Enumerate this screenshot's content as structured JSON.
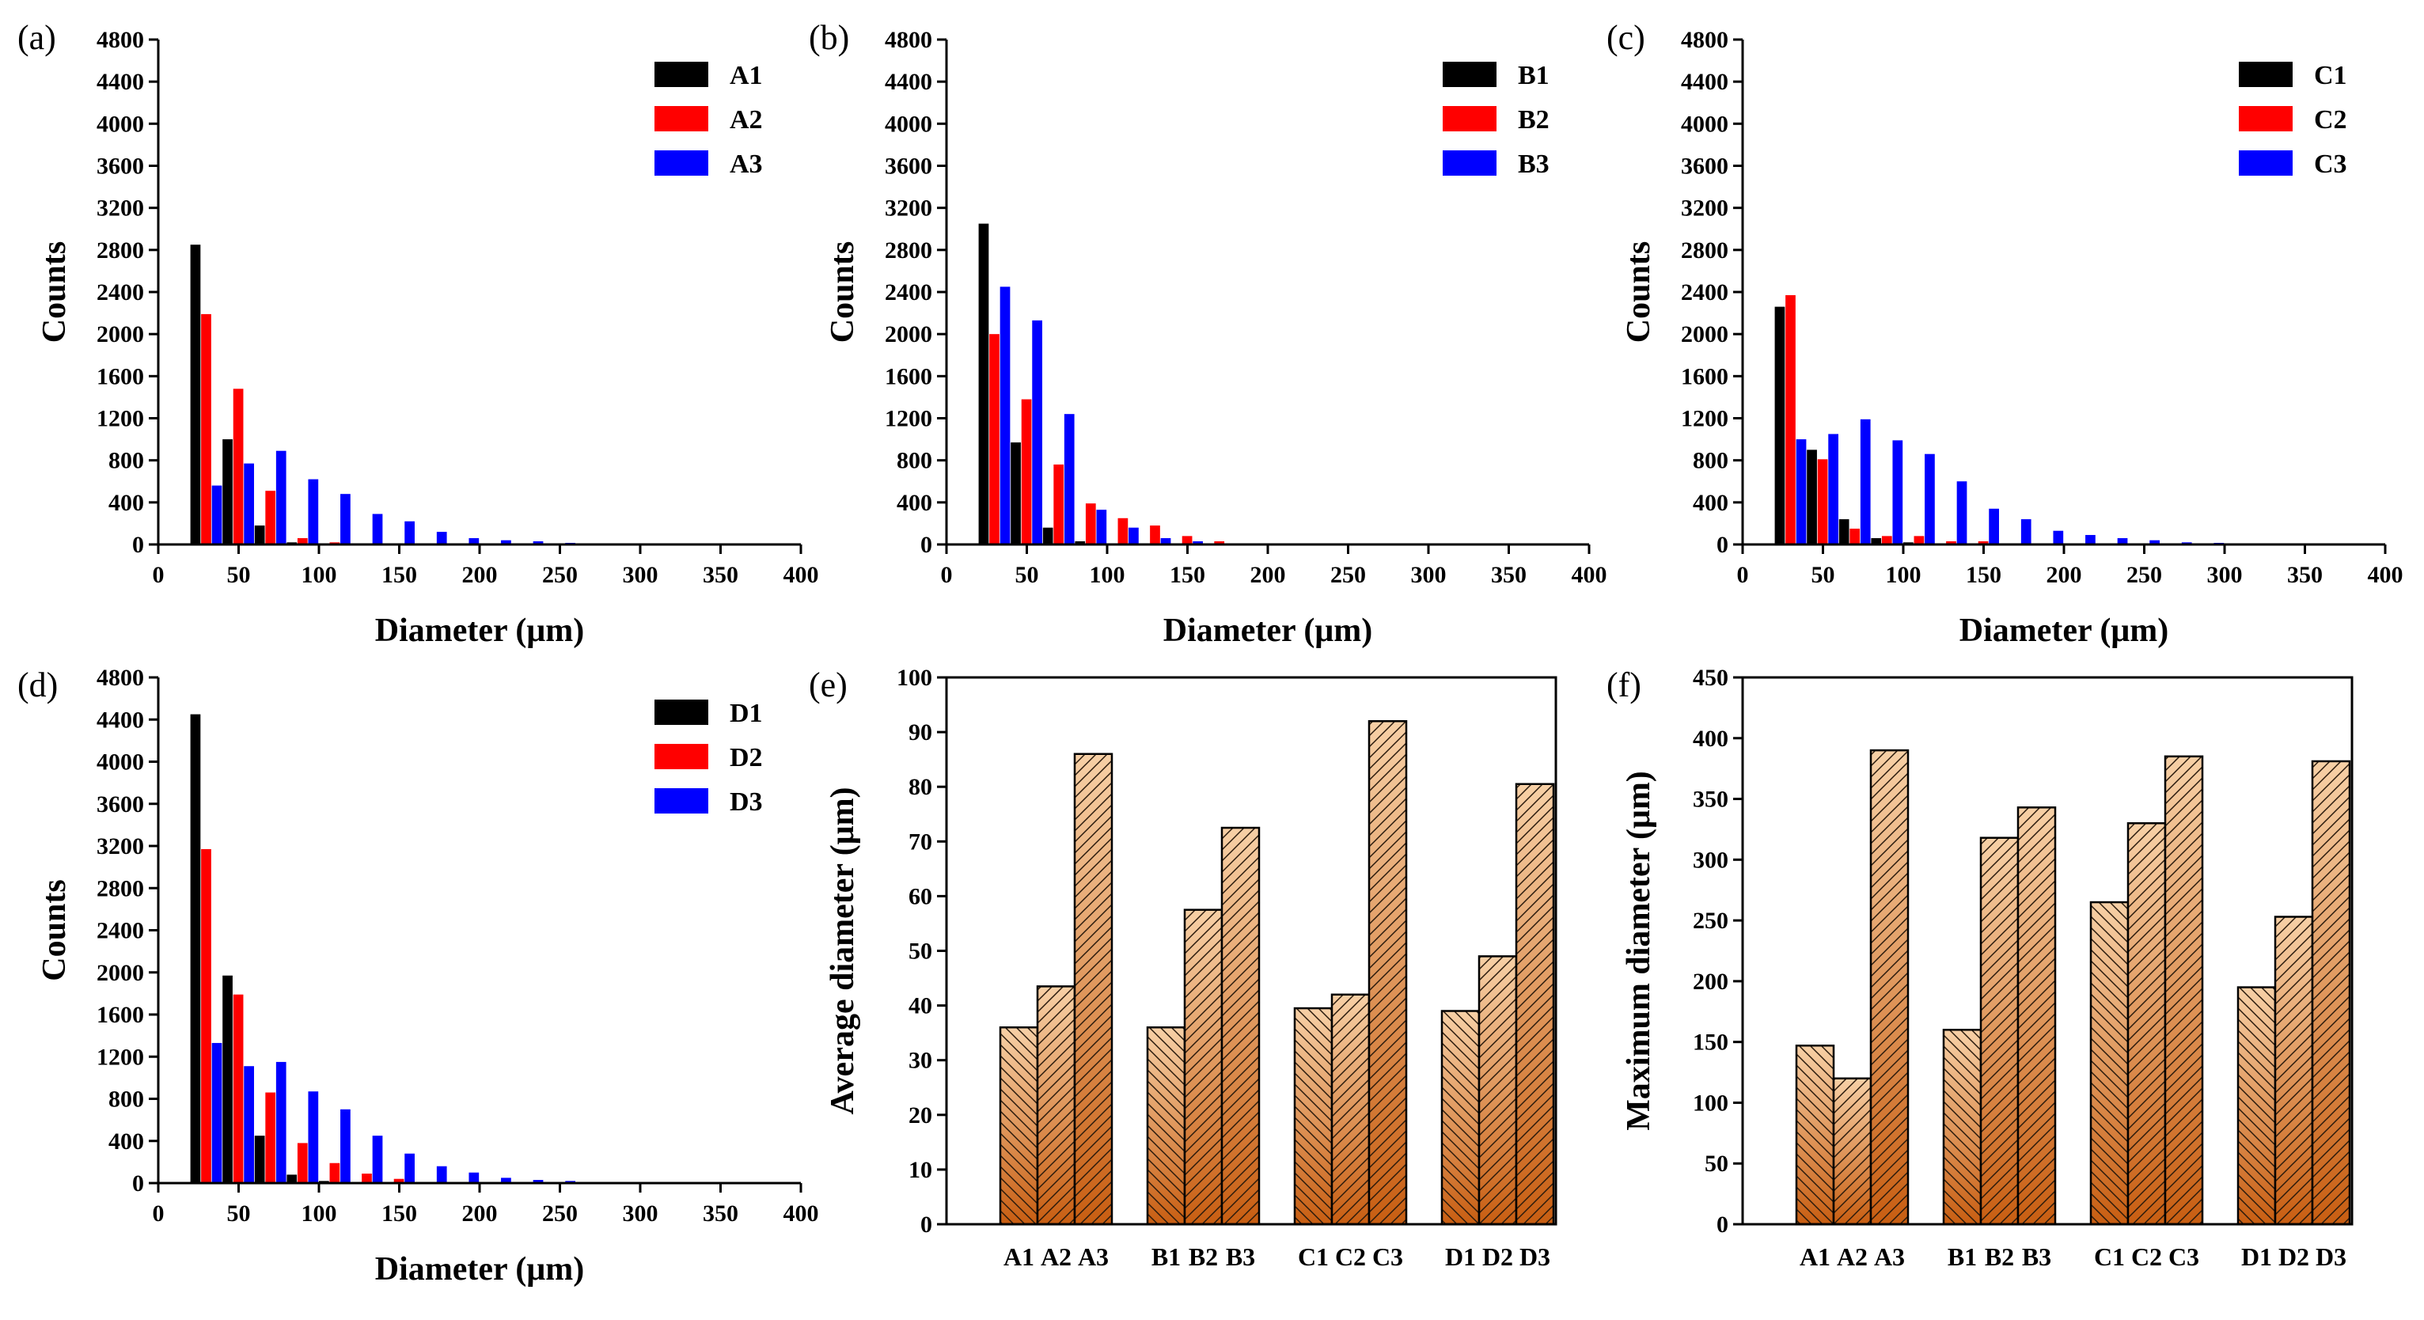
{
  "chart_data": [
    {
      "panel": "(a)",
      "type": "bar",
      "xlabel": "Diameter (μm)",
      "ylabel": "Counts",
      "xlim": [
        0,
        400
      ],
      "ylim": [
        0,
        4800
      ],
      "xticks": [
        0,
        50,
        100,
        150,
        200,
        250,
        300,
        350,
        400
      ],
      "yticks": [
        0,
        400,
        800,
        1200,
        1600,
        2000,
        2400,
        2800,
        3200,
        3600,
        4000,
        4400,
        4800
      ],
      "bin_centers": [
        30,
        50,
        70,
        90,
        110,
        130,
        150,
        170,
        190,
        210,
        230,
        250,
        270,
        290,
        310
      ],
      "legend_position": "top-right",
      "series": [
        {
          "name": "A1",
          "color": "#000000",
          "values": [
            2850,
            1000,
            180,
            20,
            10,
            0,
            0,
            0,
            0,
            0,
            0,
            0,
            0,
            0,
            0
          ]
        },
        {
          "name": "A2",
          "color": "#ff0000",
          "values": [
            2190,
            1480,
            510,
            60,
            20,
            10,
            5,
            0,
            0,
            0,
            0,
            0,
            0,
            0,
            0
          ]
        },
        {
          "name": "A3",
          "color": "#0000ff",
          "values": [
            560,
            770,
            890,
            620,
            480,
            290,
            220,
            120,
            60,
            40,
            30,
            15,
            10,
            8,
            5
          ]
        }
      ]
    },
    {
      "panel": "(b)",
      "type": "bar",
      "xlabel": "Diameter (μm)",
      "ylabel": "Counts",
      "xlim": [
        0,
        400
      ],
      "ylim": [
        0,
        4800
      ],
      "xticks": [
        0,
        50,
        100,
        150,
        200,
        250,
        300,
        350,
        400
      ],
      "yticks": [
        0,
        400,
        800,
        1200,
        1600,
        2000,
        2400,
        2800,
        3200,
        3600,
        4000,
        4400,
        4800
      ],
      "bin_centers": [
        30,
        50,
        70,
        90,
        110,
        130,
        150,
        170,
        190,
        210,
        230
      ],
      "legend_position": "top-right",
      "series": [
        {
          "name": "B1",
          "color": "#000000",
          "values": [
            3050,
            970,
            160,
            30,
            10,
            5,
            0,
            0,
            0,
            0,
            0
          ]
        },
        {
          "name": "B2",
          "color": "#ff0000",
          "values": [
            2000,
            1380,
            760,
            390,
            250,
            180,
            80,
            30,
            10,
            10,
            5
          ]
        },
        {
          "name": "B3",
          "color": "#0000ff",
          "values": [
            2450,
            2130,
            1240,
            330,
            160,
            60,
            30,
            10,
            5,
            0,
            0
          ]
        }
      ]
    },
    {
      "panel": "(c)",
      "type": "bar",
      "xlabel": "Diameter (μm)",
      "ylabel": "Counts",
      "xlim": [
        0,
        400
      ],
      "ylim": [
        0,
        4800
      ],
      "xticks": [
        0,
        50,
        100,
        150,
        200,
        250,
        300,
        350,
        400
      ],
      "yticks": [
        0,
        400,
        800,
        1200,
        1600,
        2000,
        2400,
        2800,
        3200,
        3600,
        4000,
        4400,
        4800
      ],
      "bin_centers": [
        30,
        50,
        70,
        90,
        110,
        130,
        150,
        170,
        190,
        210,
        230,
        250,
        270,
        290,
        310
      ],
      "legend_position": "top-right",
      "series": [
        {
          "name": "C1",
          "color": "#000000",
          "values": [
            2260,
            900,
            240,
            60,
            20,
            0,
            0,
            0,
            0,
            0,
            0,
            0,
            0,
            0,
            0
          ]
        },
        {
          "name": "C2",
          "color": "#ff0000",
          "values": [
            2370,
            810,
            150,
            80,
            80,
            30,
            30,
            10,
            5,
            0,
            0,
            0,
            0,
            0,
            0
          ]
        },
        {
          "name": "C3",
          "color": "#0000ff",
          "values": [
            1000,
            1050,
            1190,
            990,
            860,
            600,
            340,
            240,
            130,
            90,
            60,
            40,
            20,
            15,
            10
          ]
        }
      ]
    },
    {
      "panel": "(d)",
      "type": "bar",
      "xlabel": "Diameter (μm)",
      "ylabel": "Counts",
      "xlim": [
        0,
        400
      ],
      "ylim": [
        0,
        4800
      ],
      "xticks": [
        0,
        50,
        100,
        150,
        200,
        250,
        300,
        350,
        400
      ],
      "yticks": [
        0,
        400,
        800,
        1200,
        1600,
        2000,
        2400,
        2800,
        3200,
        3600,
        4000,
        4400,
        4800
      ],
      "bin_centers": [
        30,
        50,
        70,
        90,
        110,
        130,
        150,
        170,
        190,
        210,
        230,
        250,
        270,
        290
      ],
      "legend_position": "top-right",
      "series": [
        {
          "name": "D1",
          "color": "#000000",
          "values": [
            4450,
            1970,
            450,
            80,
            20,
            10,
            0,
            0,
            0,
            0,
            0,
            0,
            0,
            0
          ]
        },
        {
          "name": "D2",
          "color": "#ff0000",
          "values": [
            3170,
            1790,
            860,
            380,
            190,
            90,
            40,
            10,
            5,
            0,
            0,
            0,
            0,
            0
          ]
        },
        {
          "name": "D3",
          "color": "#0000ff",
          "values": [
            1330,
            1110,
            1150,
            870,
            700,
            450,
            280,
            160,
            100,
            50,
            30,
            20,
            10,
            5
          ]
        }
      ]
    },
    {
      "panel": "(e)",
      "type": "bar",
      "xlabel": "",
      "ylabel": "Average diameter (μm)",
      "ylim": [
        0,
        100
      ],
      "yticks": [
        0,
        10,
        20,
        30,
        40,
        50,
        60,
        70,
        80,
        90,
        100
      ],
      "groups": [
        {
          "name": "A",
          "categories": [
            "A1",
            "A2",
            "A3"
          ],
          "values": [
            36,
            43.5,
            86
          ]
        },
        {
          "name": "B",
          "categories": [
            "B1",
            "B2",
            "B3"
          ],
          "values": [
            36,
            57.5,
            72.5
          ]
        },
        {
          "name": "C",
          "categories": [
            "C1",
            "C2",
            "C3"
          ],
          "values": [
            39.5,
            42,
            92
          ]
        },
        {
          "name": "D",
          "categories": [
            "D1",
            "D2",
            "D3"
          ],
          "values": [
            39,
            49,
            80.5
          ]
        }
      ]
    },
    {
      "panel": "(f)",
      "type": "bar",
      "xlabel": "",
      "ylabel": "Maximum diameter (μm)",
      "ylim": [
        0,
        450
      ],
      "yticks": [
        0,
        50,
        100,
        150,
        200,
        250,
        300,
        350,
        400,
        450
      ],
      "groups": [
        {
          "name": "A",
          "categories": [
            "A1",
            "A2",
            "A3"
          ],
          "values": [
            147,
            120,
            390
          ]
        },
        {
          "name": "B",
          "categories": [
            "B1",
            "B2",
            "B3"
          ],
          "values": [
            160,
            318,
            343
          ]
        },
        {
          "name": "C",
          "categories": [
            "C1",
            "C2",
            "C3"
          ],
          "values": [
            265,
            330,
            385
          ]
        },
        {
          "name": "D",
          "categories": [
            "D1",
            "D2",
            "D3"
          ],
          "values": [
            195,
            253,
            381
          ]
        }
      ]
    }
  ]
}
